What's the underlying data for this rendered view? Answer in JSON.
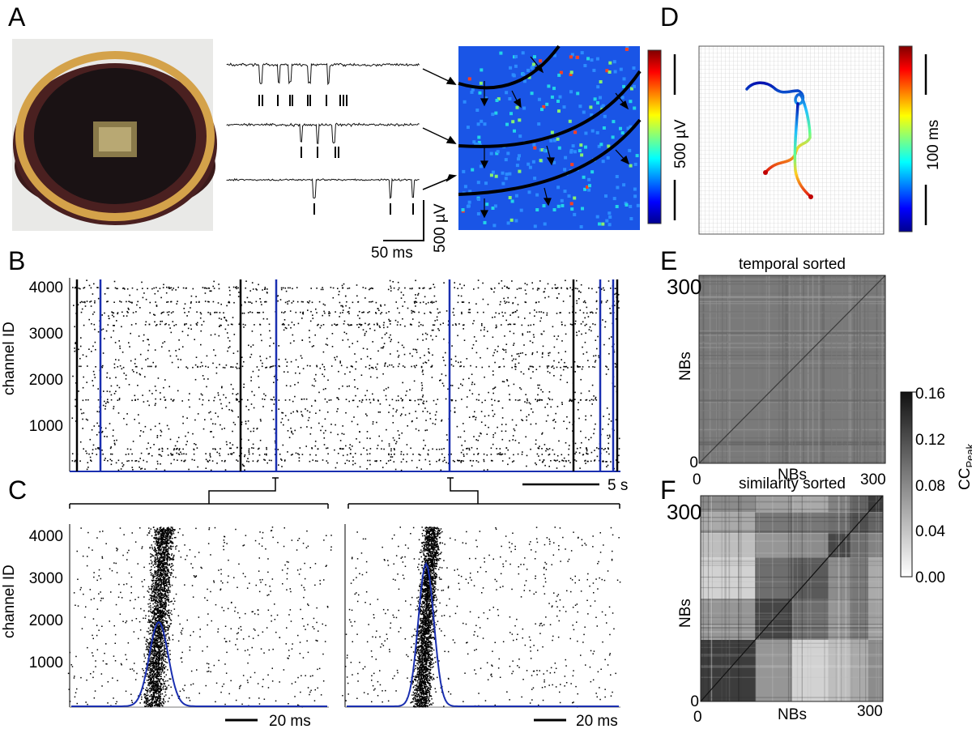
{
  "panels": {
    "A": {
      "label": "A",
      "colorbar_label": "500 µV",
      "trace_scale_y": "500 µV",
      "trace_scale_x": "50 ms"
    },
    "B": {
      "label": "B",
      "ylabel": "channel ID",
      "yticks": [
        "4000",
        "3000",
        "2000",
        "1000"
      ],
      "time_scale": "5 s"
    },
    "C": {
      "label": "C",
      "ylabel": "channel ID",
      "yticks": [
        "4000",
        "3000",
        "2000",
        "1000"
      ],
      "time_scale_left": "20 ms",
      "time_scale_right": "20 ms"
    },
    "D": {
      "label": "D",
      "colorbar_label": "100 ms"
    },
    "E": {
      "label": "E",
      "title": "temporal sorted",
      "xlabel": "NBs",
      "ylabel": "NBs",
      "tick_0_y": "0",
      "tick_300_y": "300",
      "tick_0_x": "0",
      "tick_300_x": "300"
    },
    "F": {
      "label": "F",
      "title": "similarity sorted",
      "xlabel": "NBs",
      "ylabel": "NBs",
      "tick_0_y": "0",
      "tick_300_y": "300",
      "tick_0_x": "0",
      "tick_300_x": "300"
    },
    "colorbar_EF": {
      "ticks": [
        "0.16",
        "0.12",
        "0.08",
        "0.04",
        "0.00"
      ],
      "label": "CC",
      "label_sub": "Peak",
      "range": [
        0,
        0.16
      ]
    }
  },
  "colors": {
    "blue_trace": "#1a2fb0",
    "raster_dot": "#000000"
  }
}
